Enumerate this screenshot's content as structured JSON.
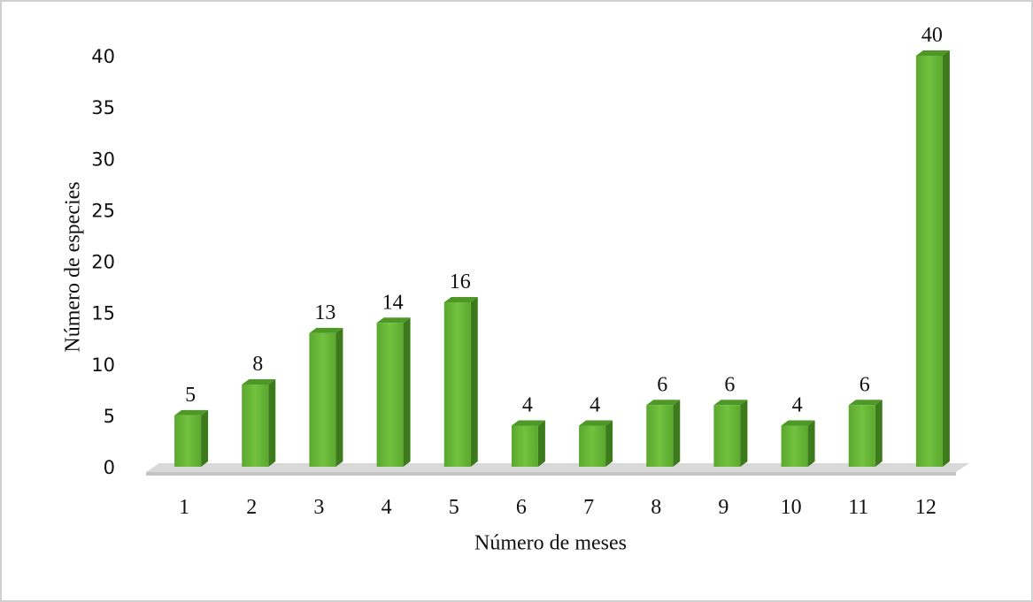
{
  "chart_data": {
    "type": "bar",
    "x_label": "Número de meses",
    "y_label": "Número de especies",
    "categories": [
      "1",
      "2",
      "3",
      "4",
      "5",
      "6",
      "7",
      "8",
      "9",
      "10",
      "11",
      "12"
    ],
    "values": [
      5,
      8,
      13,
      14,
      16,
      4,
      4,
      6,
      6,
      4,
      6,
      40
    ],
    "color": "#6ab93a",
    "ylim": [
      0,
      40
    ],
    "yticks": [
      0,
      5,
      10,
      15,
      20,
      25,
      30,
      35,
      40
    ],
    "grid": false
  }
}
